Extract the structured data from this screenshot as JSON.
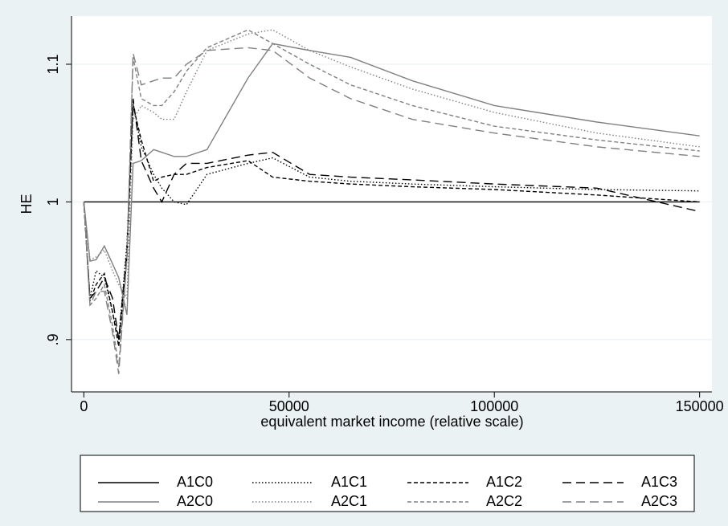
{
  "chart_data": {
    "type": "line",
    "x_label": "equivalent market income (relative scale)",
    "y_label": "HE",
    "x": [
      0,
      1500,
      3000,
      5000,
      7000,
      8500,
      10500,
      12000,
      14000,
      17000,
      19000,
      22000,
      25000,
      30000,
      40000,
      46000,
      55000,
      65000,
      80000,
      100000,
      125000,
      150000
    ],
    "series": [
      {
        "name": "A1C0",
        "color": "#000000",
        "dash": "solid",
        "values": [
          1,
          1,
          1,
          1,
          1,
          1,
          1,
          1,
          1,
          1,
          1,
          1,
          1,
          1,
          1,
          1,
          1,
          1,
          1,
          1,
          1,
          1
        ]
      },
      {
        "name": "A1C1",
        "color": "#000000",
        "dash": "dot",
        "values": [
          1.0,
          0.93,
          0.95,
          0.945,
          0.92,
          0.9,
          0.97,
          1.072,
          1.04,
          1.02,
          1.01,
          1.0,
          0.998,
          1.02,
          1.028,
          1.032,
          1.018,
          1.015,
          1.013,
          1.011,
          1.009,
          1.008
        ]
      },
      {
        "name": "A1C2",
        "color": "#000000",
        "dash": "shortdash",
        "values": [
          1.0,
          0.928,
          0.94,
          0.948,
          0.92,
          0.895,
          0.96,
          1.07,
          1.045,
          1.015,
          1.018,
          1.02,
          1.02,
          1.025,
          1.03,
          1.018,
          1.015,
          1.013,
          1.011,
          1.009,
          1.005,
          1.0
        ]
      },
      {
        "name": "A1C3",
        "color": "#000000",
        "dash": "longdash",
        "values": [
          1.0,
          0.93,
          0.935,
          0.945,
          0.93,
          0.9,
          0.965,
          1.075,
          1.03,
          1.01,
          1.0,
          1.02,
          1.028,
          1.028,
          1.034,
          1.036,
          1.02,
          1.018,
          1.016,
          1.013,
          1.01,
          0.993
        ]
      },
      {
        "name": "A2C0",
        "color": "#808080",
        "dash": "solid",
        "values": [
          1.0,
          0.957,
          0.958,
          0.968,
          0.955,
          0.945,
          0.918,
          1.028,
          1.03,
          1.038,
          1.036,
          1.033,
          1.033,
          1.038,
          1.09,
          1.115,
          1.11,
          1.105,
          1.088,
          1.07,
          1.058,
          1.048
        ]
      },
      {
        "name": "A2C1",
        "color": "#808080",
        "dash": "dot",
        "values": [
          1.0,
          0.958,
          0.96,
          0.965,
          0.95,
          0.94,
          0.93,
          1.06,
          1.07,
          1.065,
          1.06,
          1.06,
          1.08,
          1.11,
          1.122,
          1.125,
          1.11,
          1.098,
          1.082,
          1.065,
          1.05,
          1.04
        ]
      },
      {
        "name": "A2C2",
        "color": "#808080",
        "dash": "shortdash",
        "values": [
          1.0,
          0.925,
          0.93,
          0.94,
          0.91,
          0.88,
          0.96,
          1.105,
          1.075,
          1.07,
          1.07,
          1.08,
          1.095,
          1.112,
          1.125,
          1.115,
          1.1,
          1.085,
          1.07,
          1.055,
          1.045,
          1.037
        ]
      },
      {
        "name": "A2C3",
        "color": "#808080",
        "dash": "longdash",
        "values": [
          1.0,
          0.925,
          0.935,
          0.935,
          0.905,
          0.875,
          0.96,
          1.108,
          1.085,
          1.088,
          1.09,
          1.09,
          1.1,
          1.11,
          1.112,
          1.11,
          1.09,
          1.075,
          1.06,
          1.05,
          1.04,
          1.033
        ]
      }
    ],
    "xlim": [
      -3000,
      153000
    ],
    "ylim": [
      0.862,
      1.135
    ],
    "xticks": [
      0,
      50000,
      100000,
      150000
    ],
    "yticks": [
      {
        "value": 0.9,
        "label": ".9"
      },
      1,
      1.1
    ],
    "grid": true,
    "legend": "bottom"
  }
}
